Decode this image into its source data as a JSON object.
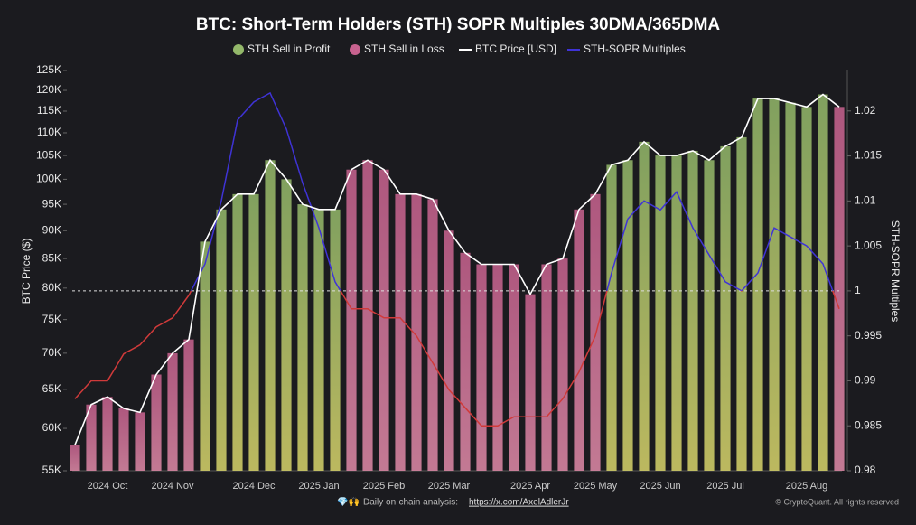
{
  "chart_data": {
    "type": "bar_line",
    "title": "BTC: Short-Term Holders (STH) SOPR Multiples 30DMA/365DMA",
    "ylabel": "BTC Price ($)",
    "y2label": "STH-SOPR Multiples",
    "footer": {
      "icons": "💎🙌",
      "text": "Daily on-chain analysis:",
      "link": "https://x.com/AxelAdlerJr",
      "credit": "© CryptoQuant. All rights reserved"
    },
    "bar_legend": [
      {
        "name": "STH Sell in Profit",
        "color": "#93b86a"
      },
      {
        "name": "STH Sell in Loss",
        "color": "#c8628f"
      }
    ],
    "threshold": 1,
    "categories": [
      null,
      null,
      "2024 Oct",
      null,
      null,
      null,
      "2024 Nov",
      null,
      null,
      null,
      null,
      "2024 Dec",
      null,
      null,
      null,
      "2025 Jan",
      null,
      null,
      null,
      "2025 Feb",
      null,
      null,
      null,
      "2025 Mar",
      null,
      null,
      null,
      null,
      "2025 Apr",
      null,
      null,
      null,
      "2025 May",
      null,
      null,
      null,
      "2025 Jun",
      null,
      null,
      null,
      "2025 Jul",
      null,
      null,
      null,
      null,
      "2025 Aug",
      null,
      null
    ],
    "series": [
      {
        "name": "BTC Price [USD]",
        "color": "#ffffff",
        "values": [
          58000,
          63000,
          64000,
          62500,
          62000,
          67000,
          70000,
          72000,
          88000,
          94000,
          97000,
          97000,
          104000,
          100000,
          95000,
          94000,
          94000,
          102000,
          104000,
          102000,
          97000,
          97000,
          96000,
          90000,
          86000,
          84000,
          84000,
          84000,
          79000,
          84000,
          85000,
          94000,
          97000,
          103000,
          104000,
          108000,
          105000,
          105000,
          106000,
          104000,
          107000,
          109000,
          118000,
          118000,
          117000,
          116000,
          119000,
          116000
        ]
      },
      {
        "name": "STH-SOPR Multiples",
        "color": "#3f33d6",
        "loss_color": "#d03a3a",
        "axis": "y2",
        "values": [
          0.988,
          0.99,
          0.99,
          0.993,
          0.994,
          0.996,
          0.997,
          0.9995,
          1.003,
          1.01,
          1.019,
          1.021,
          1.022,
          1.018,
          1.012,
          1.007,
          1.001,
          0.998,
          0.998,
          0.997,
          0.997,
          0.995,
          0.992,
          0.989,
          0.987,
          0.985,
          0.985,
          0.986,
          0.986,
          0.986,
          0.988,
          0.991,
          0.995,
          1.002,
          1.008,
          1.01,
          1.009,
          1.011,
          1.007,
          1.004,
          1.001,
          1.0,
          1.002,
          1.007,
          1.006,
          1.005,
          1.003,
          0.998
        ]
      }
    ],
    "log_y": true,
    "ylim": [
      55000,
      125000
    ],
    "yticks": [
      {
        "value": 55000,
        "label": "55K"
      },
      {
        "value": 60000,
        "label": "60K"
      },
      {
        "value": 65000,
        "label": "65K"
      },
      {
        "value": 70000,
        "label": "70K"
      },
      {
        "value": 75000,
        "label": "75K"
      },
      {
        "value": 80000,
        "label": "80K"
      },
      {
        "value": 85000,
        "label": "85K"
      },
      {
        "value": 90000,
        "label": "90K"
      },
      {
        "value": 95000,
        "label": "95K"
      },
      {
        "value": 100000,
        "label": "100K"
      },
      {
        "value": 105000,
        "label": "105K"
      },
      {
        "value": 110000,
        "label": "110K"
      },
      {
        "value": 115000,
        "label": "115K"
      },
      {
        "value": 120000,
        "label": "120K"
      },
      {
        "value": 125000,
        "label": "125K"
      }
    ],
    "y2lim": [
      0.98,
      1.0245
    ],
    "y2ticks": [
      0.98,
      0.985,
      0.99,
      0.995,
      1,
      1.005,
      1.01,
      1.015,
      1.02
    ]
  }
}
